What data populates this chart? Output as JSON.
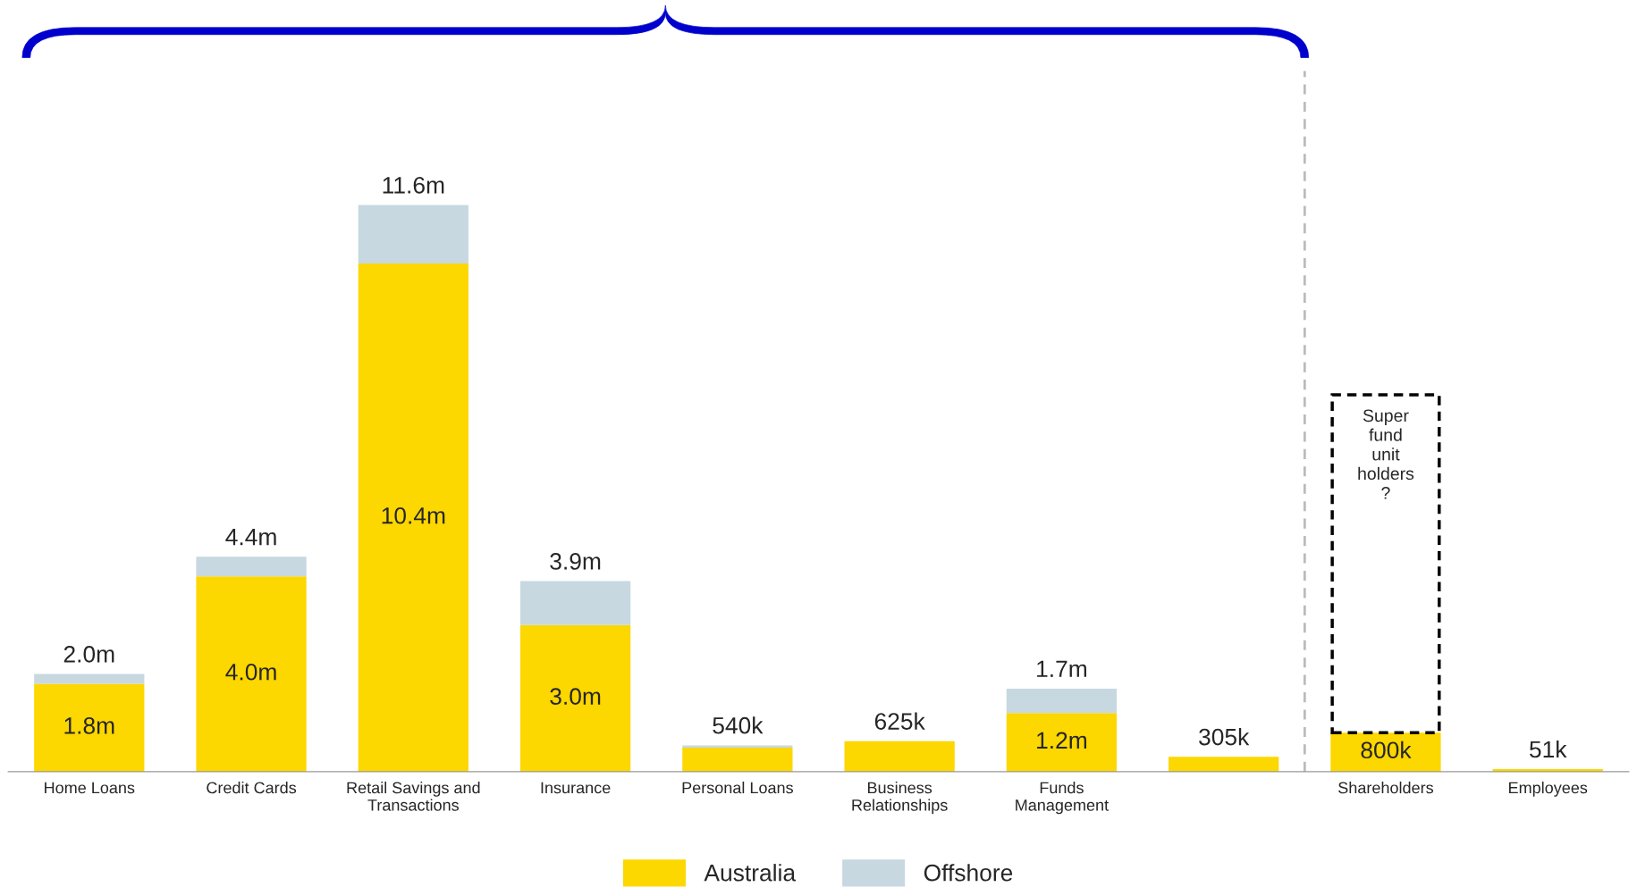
{
  "chart_data": {
    "type": "bar",
    "stacked": true,
    "categories": [
      "Home Loans",
      "Credit Cards",
      "Retail Savings and\nTransactions",
      "Insurance",
      "Personal Loans",
      "Business\nRelationships",
      "Funds\nManagement",
      null,
      "Shareholders",
      "Employees"
    ],
    "series": [
      {
        "name": "Australia",
        "color": "#fcd700",
        "values": [
          1800000,
          4000000,
          10400000,
          3000000,
          490000,
          625000,
          1200000,
          305000,
          800000,
          51000
        ],
        "value_labels": [
          "1.8m",
          "4.0m",
          "10.4m",
          "3.0m",
          null,
          null,
          "1.2m",
          null,
          "800k",
          null
        ]
      },
      {
        "name": "Offshore",
        "color": "#c7d8e0",
        "values": [
          200000,
          400000,
          1200000,
          900000,
          50000,
          0,
          500000,
          0,
          0,
          0
        ]
      }
    ],
    "totals": [
      "2.0m",
      "4.4m",
      "11.6m",
      "3.9m",
      "540k",
      "625k",
      "1.7m",
      "305k",
      null,
      "51k"
    ],
    "annotations": [
      "Super\nfund\nunit\nholders\n?"
    ],
    "legend": "bottom"
  }
}
